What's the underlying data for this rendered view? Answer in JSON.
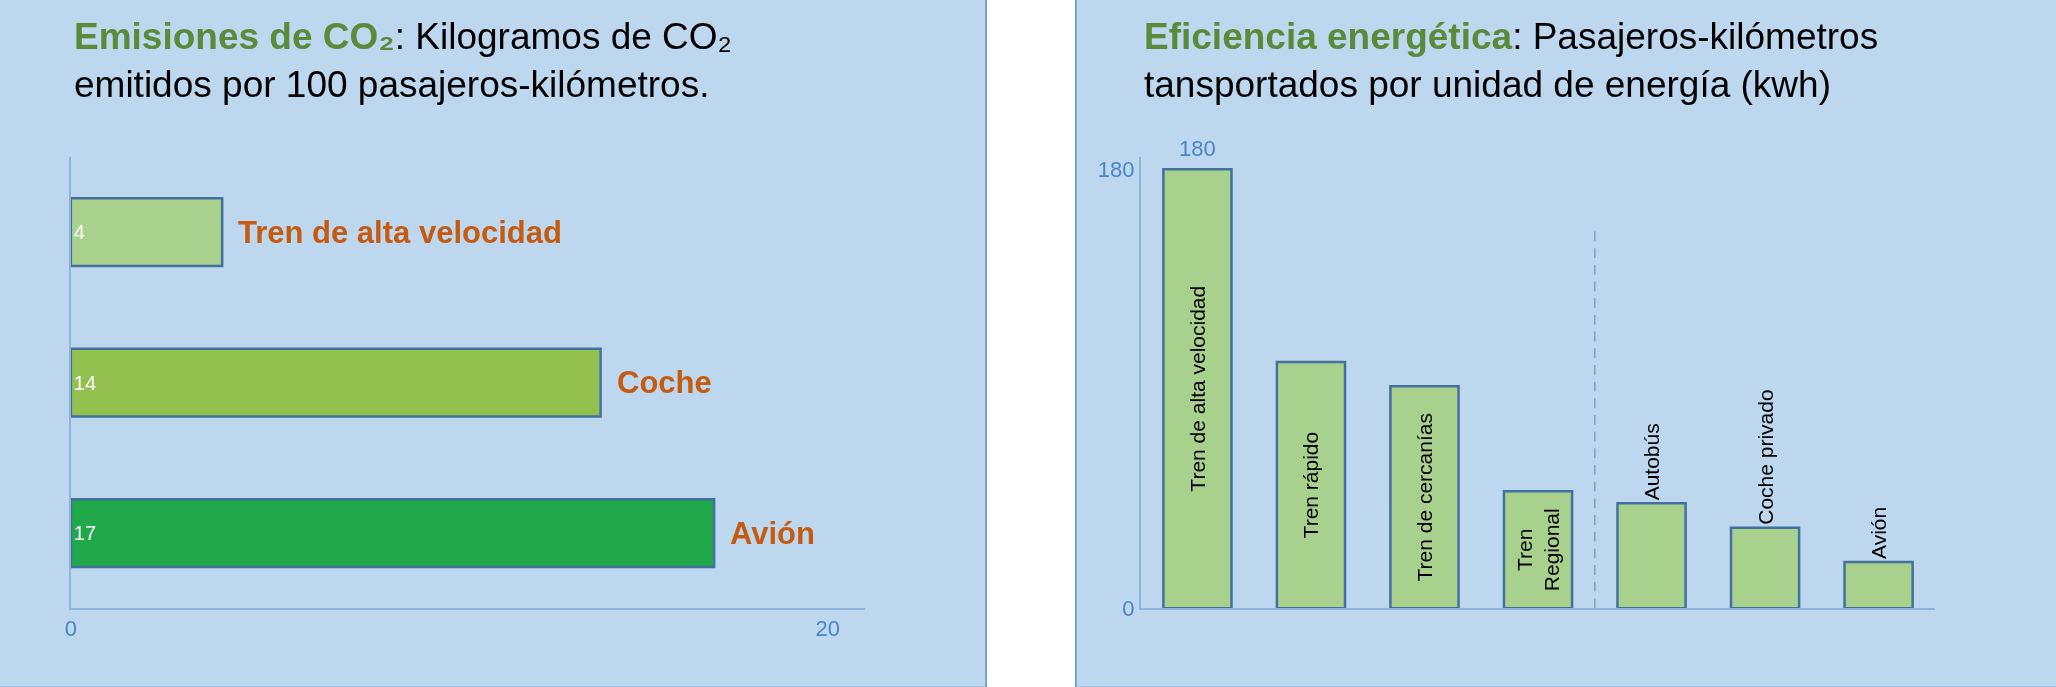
{
  "chart_data": [
    {
      "type": "bar",
      "orientation": "horizontal",
      "title": "Emisiones de CO₂: Kilogramos de CO₂ emitidos por 100 pasajeros-kilómetros.",
      "categories": [
        "Tren de alta velocidad",
        "Coche",
        "Avión"
      ],
      "values": [
        4,
        14,
        17
      ],
      "colors": [
        "#a9d18e",
        "#92c150",
        "#21a84a"
      ],
      "xlim": [
        0,
        21
      ],
      "xticks": [
        0,
        20
      ],
      "data_labels": true,
      "tick_labels": "x"
    },
    {
      "type": "bar",
      "title": "Eficiencia energética: Pasajeros-kilómetros tansportados por unidad de energía (kwh)",
      "categories": [
        "Tren de alta velocidad",
        "Tren rápido",
        "Tren de cercanías",
        "Tren Regional",
        "Autobús",
        "Coche privado",
        "Avión"
      ],
      "values": [
        180,
        101,
        91,
        48,
        43,
        33,
        19
      ],
      "color": "#a9d18e",
      "value_labels": [
        "180",
        null,
        null,
        null,
        null,
        null,
        null
      ],
      "ylim": [
        0,
        185
      ],
      "yticks": [
        0,
        180
      ],
      "tick_labels": "y"
    }
  ]
}
